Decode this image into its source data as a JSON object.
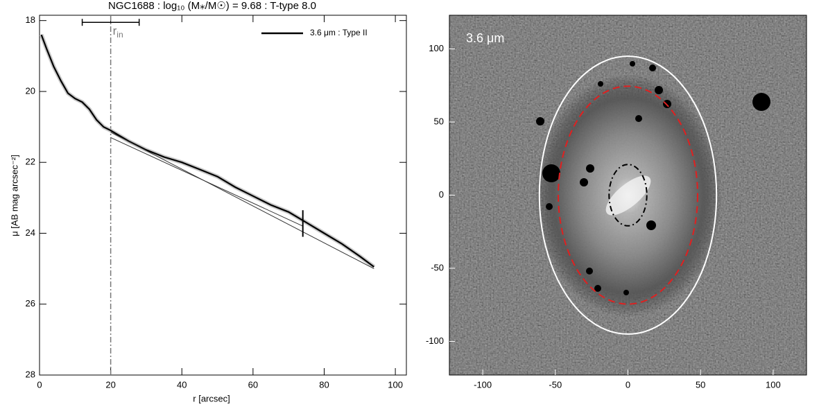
{
  "chart_data": [
    {
      "type": "line",
      "title": "NGC1688 : log₁₀ (M⁎/M☉) = 9.68 : T-type 8.0",
      "xlabel": "r [arcsec]",
      "ylabel": "μ [AB mag arcsec⁻²]",
      "xlim": [
        0,
        103.1
      ],
      "ylim": [
        17.85,
        28
      ],
      "y_inverted": true,
      "xticks": [
        0,
        20,
        40,
        60,
        80,
        100
      ],
      "yticks": [
        18,
        20,
        22,
        24,
        26,
        28
      ],
      "x": [
        0.5,
        2,
        4,
        6,
        8,
        10,
        12,
        14,
        16,
        18,
        20,
        25,
        30,
        35,
        40,
        45,
        50,
        55,
        60,
        65,
        70,
        75,
        80,
        85,
        90,
        94
      ],
      "series": [
        {
          "name": "3.6 μm : Type II",
          "color": "#000000",
          "values": [
            18.4,
            18.8,
            19.3,
            19.7,
            20.05,
            20.2,
            20.3,
            20.5,
            20.8,
            21.0,
            21.1,
            21.4,
            21.65,
            21.85,
            22.0,
            22.2,
            22.4,
            22.7,
            22.95,
            23.2,
            23.4,
            23.7,
            24.0,
            24.3,
            24.65,
            24.95
          ]
        }
      ],
      "fits": [
        {
          "x": [
            20,
            94
          ],
          "values": [
            21.15,
            25.0
          ],
          "color": "#333333"
        },
        {
          "x": [
            20,
            74
          ],
          "values": [
            21.3,
            23.8
          ],
          "color": "#333333"
        }
      ],
      "break_marker": {
        "x": 74,
        "y": [
          23.35,
          24.1
        ]
      },
      "r_in": {
        "label": "r",
        "label_sub": "in",
        "value": 20,
        "lower": 12,
        "upper": 28,
        "y": 18.05
      }
    },
    {
      "type": "image",
      "label": "3.6 μm",
      "xlim": [
        -123,
        123
      ],
      "ylim": [
        -123,
        123
      ],
      "xticks": [
        -100,
        -50,
        0,
        50,
        100
      ],
      "yticks": [
        -100,
        -50,
        0,
        50,
        100
      ],
      "ellipses": [
        {
          "a": 61,
          "b": 95,
          "color": "#ffffff",
          "dash": "solid"
        },
        {
          "a": 48,
          "b": 74.5,
          "color": "#e02020",
          "dash": "dashed"
        },
        {
          "a": 13,
          "b": 21,
          "color": "#000000",
          "dash": "dashdot"
        }
      ]
    }
  ]
}
